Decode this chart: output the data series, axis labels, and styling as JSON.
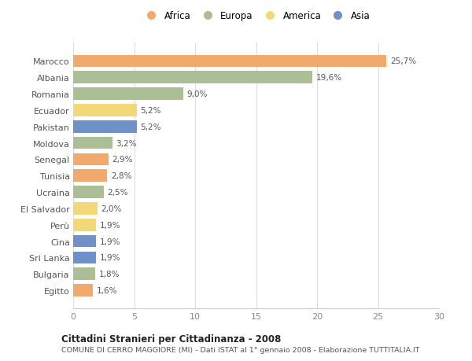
{
  "countries": [
    "Marocco",
    "Albania",
    "Romania",
    "Ecuador",
    "Pakistan",
    "Moldova",
    "Senegal",
    "Tunisia",
    "Ucraina",
    "El Salvador",
    "Perù",
    "Cina",
    "Sri Lanka",
    "Bulgaria",
    "Egitto"
  ],
  "values": [
    25.7,
    19.6,
    9.0,
    5.2,
    5.2,
    3.2,
    2.9,
    2.8,
    2.5,
    2.0,
    1.9,
    1.9,
    1.9,
    1.8,
    1.6
  ],
  "labels": [
    "25,7%",
    "19,6%",
    "9,0%",
    "5,2%",
    "5,2%",
    "3,2%",
    "2,9%",
    "2,8%",
    "2,5%",
    "2,0%",
    "1,9%",
    "1,9%",
    "1,9%",
    "1,8%",
    "1,6%"
  ],
  "continents": [
    "Africa",
    "Europa",
    "Europa",
    "America",
    "Asia",
    "Europa",
    "Africa",
    "Africa",
    "Europa",
    "America",
    "America",
    "Asia",
    "Asia",
    "Europa",
    "Africa"
  ],
  "continent_colors": {
    "Africa": "#F2A96E",
    "Europa": "#ABBE96",
    "America": "#F2D878",
    "Asia": "#7090C8"
  },
  "legend_order": [
    "Africa",
    "Europa",
    "America",
    "Asia"
  ],
  "title1": "Cittadini Stranieri per Cittadinanza - 2008",
  "title2": "COMUNE DI CERRO MAGGIORE (MI) - Dati ISTAT al 1° gennaio 2008 - Elaborazione TUTTITALIA.IT",
  "xlim": [
    0,
    30
  ],
  "xticks": [
    0,
    5,
    10,
    15,
    20,
    25,
    30
  ],
  "background_color": "#ffffff",
  "plot_bg_color": "#ffffff"
}
